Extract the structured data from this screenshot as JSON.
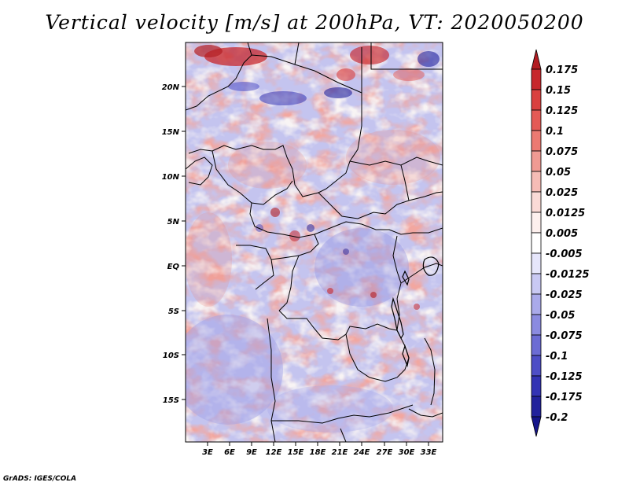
{
  "title": "Vertical velocity [m/s] at 200hPa, VT: 2020050200",
  "credit": "GrADS: IGES/COLA",
  "map": {
    "lat_labels": [
      "20N",
      "15N",
      "10N",
      "5N",
      "EQ",
      "5S",
      "10S",
      "15S"
    ],
    "lon_labels": [
      "3E",
      "6E",
      "9E",
      "12E",
      "15E",
      "18E",
      "21E",
      "24E",
      "27E",
      "30E",
      "33E"
    ]
  },
  "colorbar": {
    "labels": [
      "0.175",
      "0.15",
      "0.125",
      "0.1",
      "0.075",
      "0.05",
      "0.025",
      "0.0125",
      "0.005",
      "-0.005",
      "-0.0125",
      "-0.025",
      "-0.05",
      "-0.075",
      "-0.1",
      "-0.125",
      "-0.175",
      "-0.2"
    ],
    "colors": [
      "#b21c22",
      "#c7272c",
      "#d9403f",
      "#e45a55",
      "#ec7a72",
      "#f09a93",
      "#f6bcb6",
      "#fadad6",
      "#fdf0ee",
      "#ffffff",
      "#e6e6fb",
      "#c9c9f3",
      "#aaaaea",
      "#8b8be0",
      "#6c6cd4",
      "#4e4ec6",
      "#3333b4",
      "#22229c",
      "#16168a"
    ]
  }
}
